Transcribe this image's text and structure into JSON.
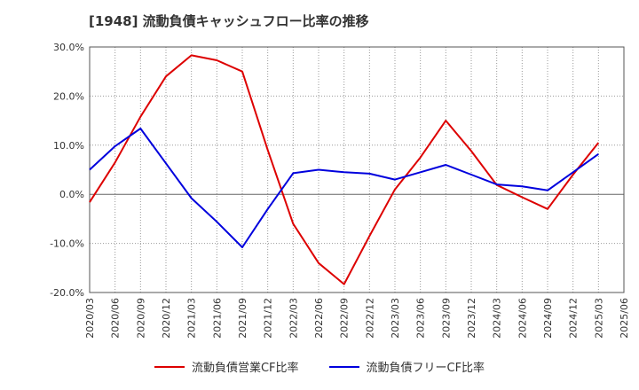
{
  "title": "[1948]  流動負債キャッシュフロー比率の推移",
  "chart_data": {
    "type": "line",
    "title": "[1948]  流動負債キャッシュフロー比率の推移",
    "x": [
      "2020/03",
      "2020/06",
      "2020/09",
      "2020/12",
      "2021/03",
      "2021/06",
      "2021/09",
      "2021/12",
      "2022/03",
      "2022/06",
      "2022/09",
      "2022/12",
      "2023/03",
      "2023/06",
      "2023/09",
      "2023/12",
      "2024/03",
      "2024/06",
      "2024/09",
      "2024/12",
      "2025/03",
      "2025/06"
    ],
    "ylim": [
      -20,
      30
    ],
    "yticks": [
      -20,
      -10,
      0,
      10,
      20,
      30
    ],
    "ytick_labels": [
      "-20.0%",
      "-10.0%",
      "0.0%",
      "10.0%",
      "20.0%",
      "30.0%"
    ],
    "grid": true,
    "legend_position": "bottom",
    "series": [
      {
        "name": "流動負債営業CF比率",
        "color": "#dd0000",
        "values": [
          -1.6,
          6.5,
          15.8,
          24.0,
          28.3,
          27.3,
          25.0,
          9.0,
          -6.0,
          -14.0,
          -18.3,
          -8.5,
          1.0,
          7.5,
          15.0,
          8.8,
          1.9,
          -0.6,
          -3.0,
          4.0,
          10.5,
          null
        ]
      },
      {
        "name": "流動負債フリーCF比率",
        "color": "#0000dd",
        "values": [
          5.0,
          9.8,
          13.4,
          6.3,
          -0.8,
          -5.6,
          -10.8,
          -3.0,
          4.3,
          5.0,
          4.5,
          4.2,
          3.0,
          4.5,
          6.0,
          4.0,
          2.0,
          1.6,
          0.8,
          4.5,
          8.2,
          null
        ]
      }
    ]
  }
}
